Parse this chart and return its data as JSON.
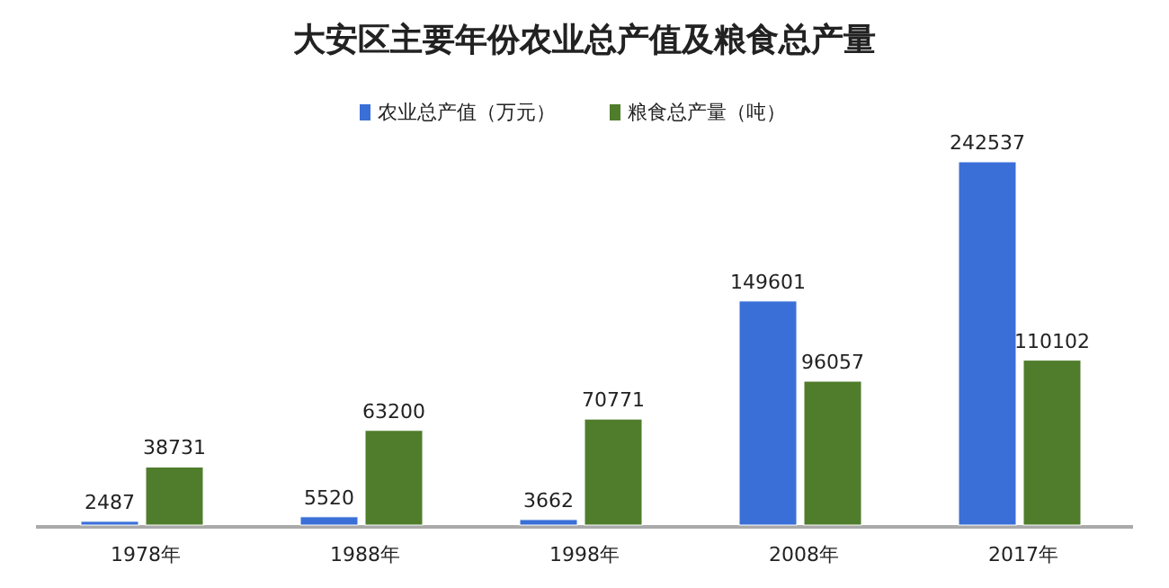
{
  "chart_data": {
    "type": "bar",
    "title": "大安区主要年份农业总产值及粮食总产量",
    "categories": [
      "1978年",
      "1988年",
      "1998年",
      "2008年",
      "2017年"
    ],
    "series": [
      {
        "name": "农业总产值（万元）",
        "color": "#3a6fd8",
        "values": [
          2487,
          5520,
          3662,
          149601,
          242537
        ]
      },
      {
        "name": "粮食总产量（吨）",
        "color": "#4f7d2c",
        "values": [
          38731,
          63200,
          70771,
          96057,
          110102
        ]
      }
    ],
    "data_labels": true,
    "legend": "top",
    "grid": false
  }
}
